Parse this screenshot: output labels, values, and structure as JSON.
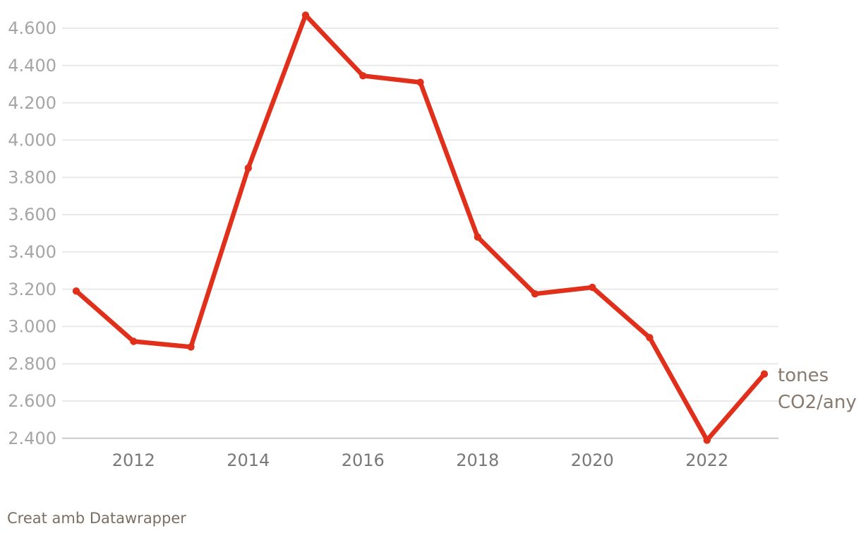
{
  "colors": {
    "line": "#e0301c",
    "point": "#e0301c",
    "grid": "#e9e9e9",
    "grid_baseline": "#cccccc",
    "y_label": "#a5a5a5",
    "x_label": "#787878",
    "legend_text": "#877a6e",
    "footer_text": "#7b6e63",
    "background": "#ffffff"
  },
  "legend": {
    "line1": "tones",
    "line2": "CO2/any"
  },
  "footer": {
    "text": "Creat amb Datawrapper"
  },
  "chart_data": {
    "type": "line",
    "title": "",
    "xlabel": "",
    "ylabel": "",
    "x": [
      2011,
      2012,
      2013,
      2014,
      2015,
      2016,
      2017,
      2018,
      2019,
      2020,
      2021,
      2022,
      2023
    ],
    "series": [
      {
        "name": "tones CO2/any",
        "values": [
          3190,
          2920,
          2890,
          3850,
          4670,
          4345,
          4310,
          3480,
          3175,
          3210,
          2940,
          2390,
          2745
        ]
      }
    ],
    "ylim": [
      2400,
      4600
    ],
    "xlim": [
      2011,
      2023
    ],
    "y_ticks": [
      {
        "value": 2400,
        "label": "2.400"
      },
      {
        "value": 2600,
        "label": "2.600"
      },
      {
        "value": 2800,
        "label": "2.800"
      },
      {
        "value": 3000,
        "label": "3.000"
      },
      {
        "value": 3200,
        "label": "3.200"
      },
      {
        "value": 3400,
        "label": "3.400"
      },
      {
        "value": 3600,
        "label": "3.600"
      },
      {
        "value": 3800,
        "label": "3.800"
      },
      {
        "value": 4000,
        "label": "4.000"
      },
      {
        "value": 4200,
        "label": "4.200"
      },
      {
        "value": 4400,
        "label": "4.400"
      },
      {
        "value": 4600,
        "label": "4.600"
      }
    ],
    "x_ticks": [
      {
        "value": 2012,
        "label": "2012"
      },
      {
        "value": 2014,
        "label": "2014"
      },
      {
        "value": 2016,
        "label": "2016"
      },
      {
        "value": 2018,
        "label": "2018"
      },
      {
        "value": 2020,
        "label": "2020"
      },
      {
        "value": 2022,
        "label": "2022"
      }
    ],
    "grid": "horizontal",
    "legend_position": "right-of-last-point",
    "marker": "circle"
  }
}
